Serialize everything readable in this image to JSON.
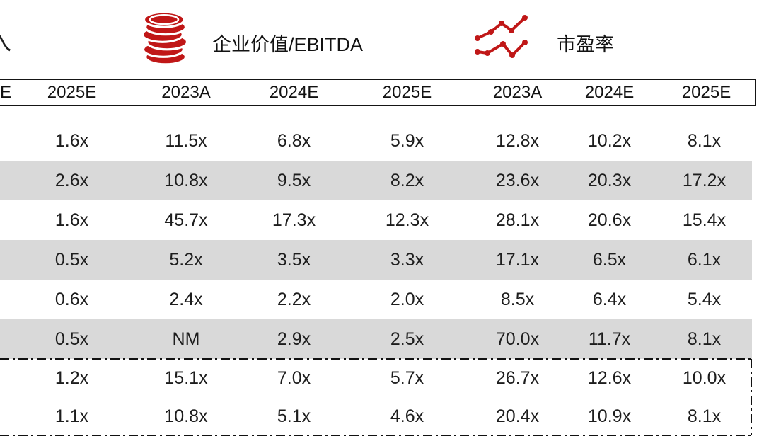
{
  "legend": {
    "partial_label": "入",
    "items": [
      {
        "icon": "coins-icon",
        "label": "企业价值/EBITDA"
      },
      {
        "icon": "line-chart-icon",
        "label": "市盈率"
      }
    ]
  },
  "colors": {
    "accent_red": "#c01717",
    "row_band_gray": "#d9d9d9",
    "border_black": "#151515"
  },
  "table": {
    "header": [
      "E",
      "2025E",
      "2023A",
      "2024E",
      "2025E",
      "2023A",
      "2024E",
      "2025E"
    ],
    "rows": [
      {
        "section": "main",
        "shaded": false,
        "cells": [
          "",
          "1.6x",
          "11.5x",
          "6.8x",
          "5.9x",
          "12.8x",
          "10.2x",
          "8.1x"
        ]
      },
      {
        "section": "main",
        "shaded": true,
        "cells": [
          "",
          "2.6x",
          "10.8x",
          "9.5x",
          "8.2x",
          "23.6x",
          "20.3x",
          "17.2x"
        ]
      },
      {
        "section": "main",
        "shaded": false,
        "cells": [
          "",
          "1.6x",
          "45.7x",
          "17.3x",
          "12.3x",
          "28.1x",
          "20.6x",
          "15.4x"
        ]
      },
      {
        "section": "main",
        "shaded": true,
        "cells": [
          "",
          "0.5x",
          "5.2x",
          "3.5x",
          "3.3x",
          "17.1x",
          "6.5x",
          "6.1x"
        ]
      },
      {
        "section": "main",
        "shaded": false,
        "cells": [
          "",
          "0.6x",
          "2.4x",
          "2.2x",
          "2.0x",
          "8.5x",
          "6.4x",
          "5.4x"
        ]
      },
      {
        "section": "main",
        "shaded": true,
        "cells": [
          "",
          "0.5x",
          "NM",
          "2.9x",
          "2.5x",
          "70.0x",
          "11.7x",
          "8.1x"
        ]
      },
      {
        "section": "summary",
        "shaded": false,
        "cells": [
          "",
          "1.2x",
          "15.1x",
          "7.0x",
          "5.7x",
          "26.7x",
          "12.6x",
          "10.0x"
        ]
      },
      {
        "section": "summary",
        "shaded": false,
        "cells": [
          "",
          "1.1x",
          "10.8x",
          "5.1x",
          "4.6x",
          "20.4x",
          "10.9x",
          "8.1x"
        ]
      }
    ]
  }
}
